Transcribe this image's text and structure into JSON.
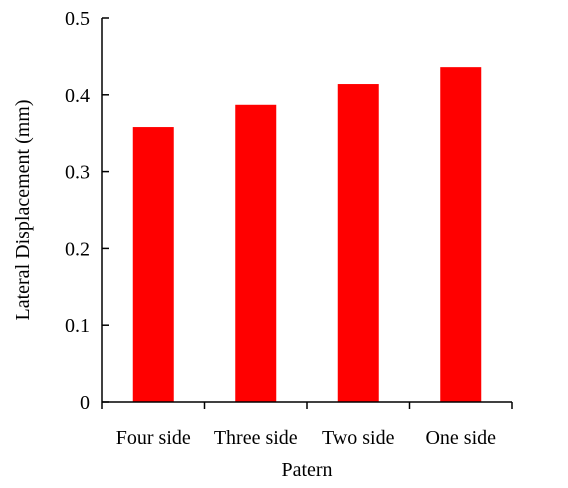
{
  "chart_data": {
    "type": "bar",
    "title": "",
    "xlabel": "Patern",
    "ylabel": "Lateral Displacement (mm)",
    "categories": [
      "Four side",
      "Three side",
      "Two side",
      "One side"
    ],
    "values": [
      0.358,
      0.387,
      0.414,
      0.436
    ],
    "ylim": [
      0,
      0.5
    ],
    "yticks": [
      0,
      0.1,
      0.2,
      0.3,
      0.4,
      0.5
    ],
    "ytick_labels": [
      "0",
      "0.1",
      "0.2",
      "0.3",
      "0.4",
      "0.5"
    ],
    "bar_color": "#ff0000",
    "grid": false,
    "legend": "none"
  }
}
